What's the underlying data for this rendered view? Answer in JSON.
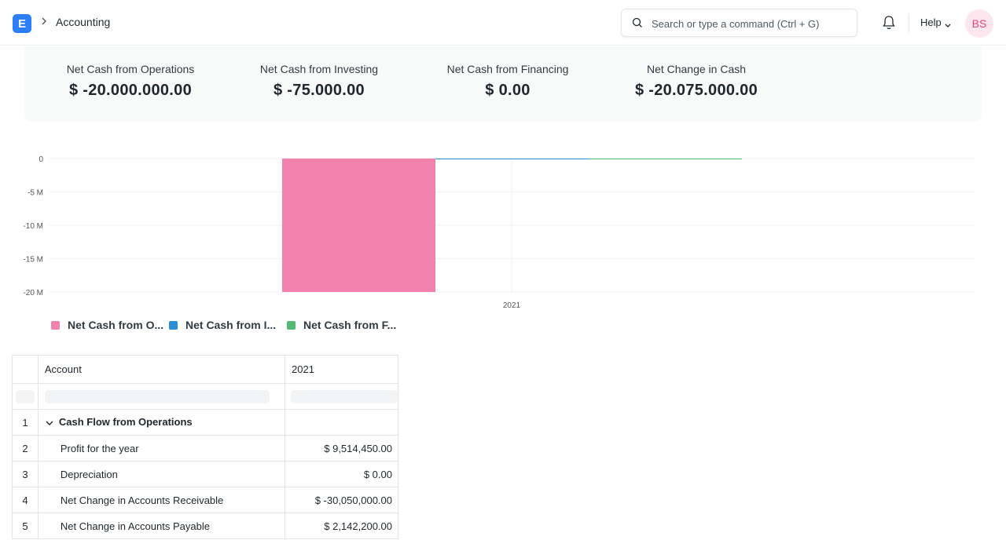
{
  "navbar": {
    "logo_letter": "E",
    "breadcrumb": "Accounting",
    "search_placeholder": "Search or type a command (Ctrl + G)",
    "help_label": "Help",
    "avatar_initials": "BS"
  },
  "summary": [
    {
      "label": "Net Cash from Operations",
      "value": "$ -20.000.000.00"
    },
    {
      "label": "Net Cash from Investing",
      "value": "$ -75.000.00"
    },
    {
      "label": "Net Cash from Financing",
      "value": "$ 0.00"
    },
    {
      "label": "Net Change in Cash",
      "value": "$ -20.075.000.00"
    }
  ],
  "chart_data": {
    "type": "bar",
    "categories": [
      "2021"
    ],
    "series": [
      {
        "name": "Net Cash from O...",
        "color": "#f082ad",
        "values": [
          -20000000
        ]
      },
      {
        "name": "Net Cash from I...",
        "color": "#2b8ed7",
        "values": [
          -75000
        ]
      },
      {
        "name": "Net Cash from F...",
        "color": "#55b874",
        "values": [
          0
        ]
      }
    ],
    "y_ticks": [
      "0",
      "-5 M",
      "-10 M",
      "-15 M",
      "-20 M"
    ],
    "y_tick_values": [
      0,
      -5000000,
      -10000000,
      -15000000,
      -20000000
    ],
    "ylim": [
      -20000000,
      0
    ],
    "grid": true,
    "legend_position": "bottom-left"
  },
  "table": {
    "columns": [
      "Account",
      "2021"
    ],
    "rows": [
      {
        "num": "1",
        "account": "Cash Flow from Operations",
        "value": "",
        "group": true
      },
      {
        "num": "2",
        "account": "Profit for the year",
        "value": "$ 9,514,450.00",
        "group": false
      },
      {
        "num": "3",
        "account": "Depreciation",
        "value": "$ 0.00",
        "group": false
      },
      {
        "num": "4",
        "account": "Net Change in Accounts Receivable",
        "value": "$ -30,050,000.00",
        "group": false
      },
      {
        "num": "5",
        "account": "Net Change in Accounts Payable",
        "value": "$ 2,142,200.00",
        "group": false
      }
    ]
  }
}
